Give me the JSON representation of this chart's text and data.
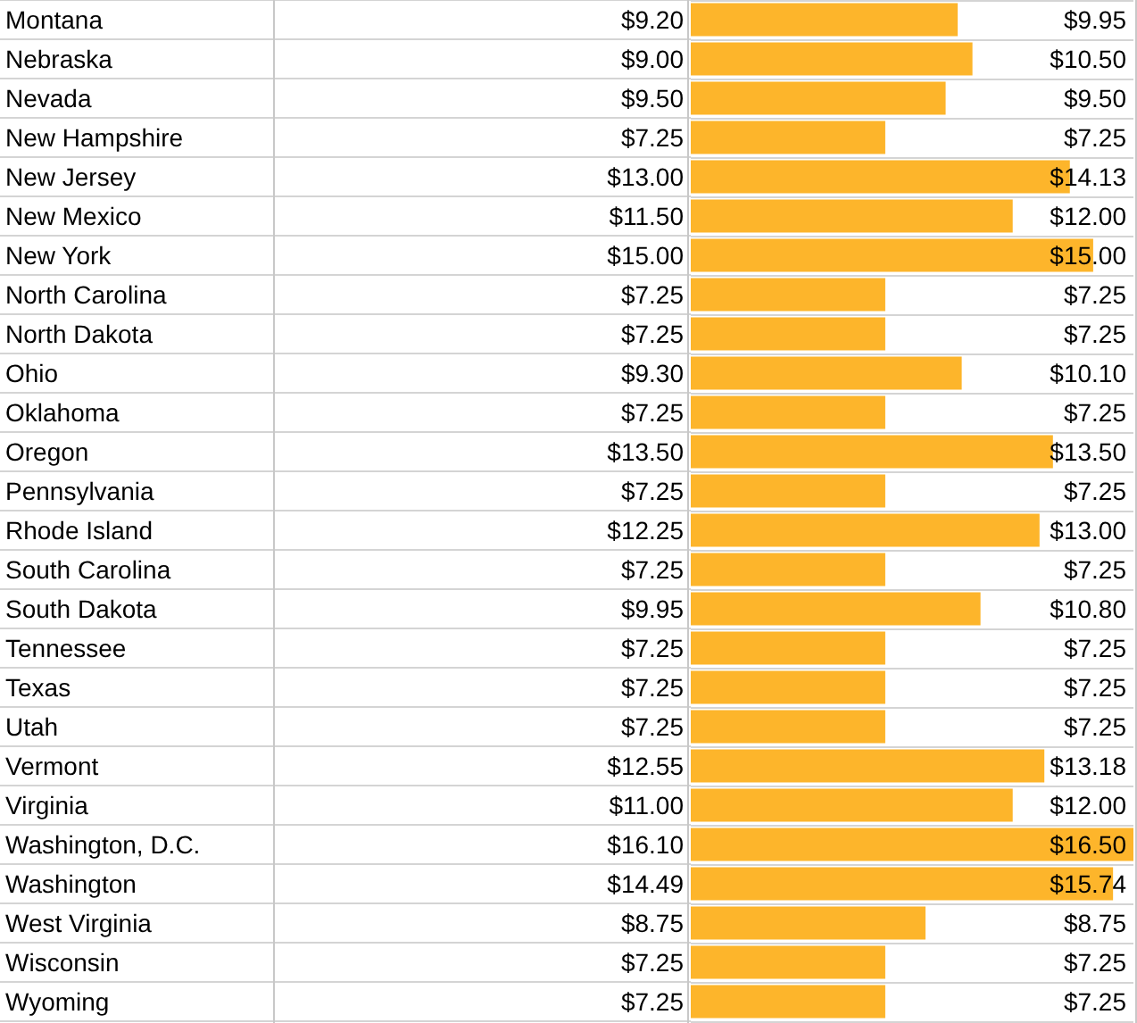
{
  "chart_data": {
    "type": "bar",
    "orientation": "horizontal",
    "grid": "y",
    "categories": [
      "Montana",
      "Nebraska",
      "Nevada",
      "New Hampshire",
      "New Jersey",
      "New Mexico",
      "New York",
      "North Carolina",
      "North Dakota",
      "Ohio",
      "Oklahoma",
      "Oregon",
      "Pennsylvania",
      "Rhode Island",
      "South Carolina",
      "South Dakota",
      "Tennessee",
      "Texas",
      "Utah",
      "Vermont",
      "Virginia",
      "Washington, D.C.",
      "Washington",
      "West Virginia",
      "Wisconsin",
      "Wyoming"
    ],
    "series": [
      {
        "color": "#fdb52b",
        "values": [
          9.95,
          10.5,
          9.5,
          7.25,
          14.13,
          12.0,
          15.0,
          7.25,
          7.25,
          10.1,
          7.25,
          13.5,
          7.25,
          13.0,
          7.25,
          10.8,
          7.25,
          7.25,
          7.25,
          13.18,
          12.0,
          16.5,
          15.74,
          8.75,
          7.25,
          7.25
        ],
        "value_labels": [
          "$9.95",
          "$10.50",
          "$9.50",
          "$7.25",
          "$14.13",
          "$12.00",
          "$15.00",
          "$7.25",
          "$7.25",
          "$10.10",
          "$7.25",
          "$13.50",
          "$7.25",
          "$13.00",
          "$7.25",
          "$10.80",
          "$7.25",
          "$7.25",
          "$7.25",
          "$13.18",
          "$12.00",
          "$16.50",
          "$15.74",
          "$8.75",
          "$7.25",
          "$7.25"
        ]
      }
    ],
    "annotations": [
      "$9.20",
      "$9.00",
      "$9.50",
      "$7.25",
      "$13.00",
      "$11.50",
      "$15.00",
      "$7.25",
      "$7.25",
      "$9.30",
      "$7.25",
      "$13.50",
      "$7.25",
      "$12.25",
      "$7.25",
      "$9.95",
      "$7.25",
      "$7.25",
      "$7.25",
      "$12.55",
      "$11.00",
      "$16.10",
      "$14.49",
      "$8.75",
      "$7.25",
      "$7.25"
    ]
  }
}
